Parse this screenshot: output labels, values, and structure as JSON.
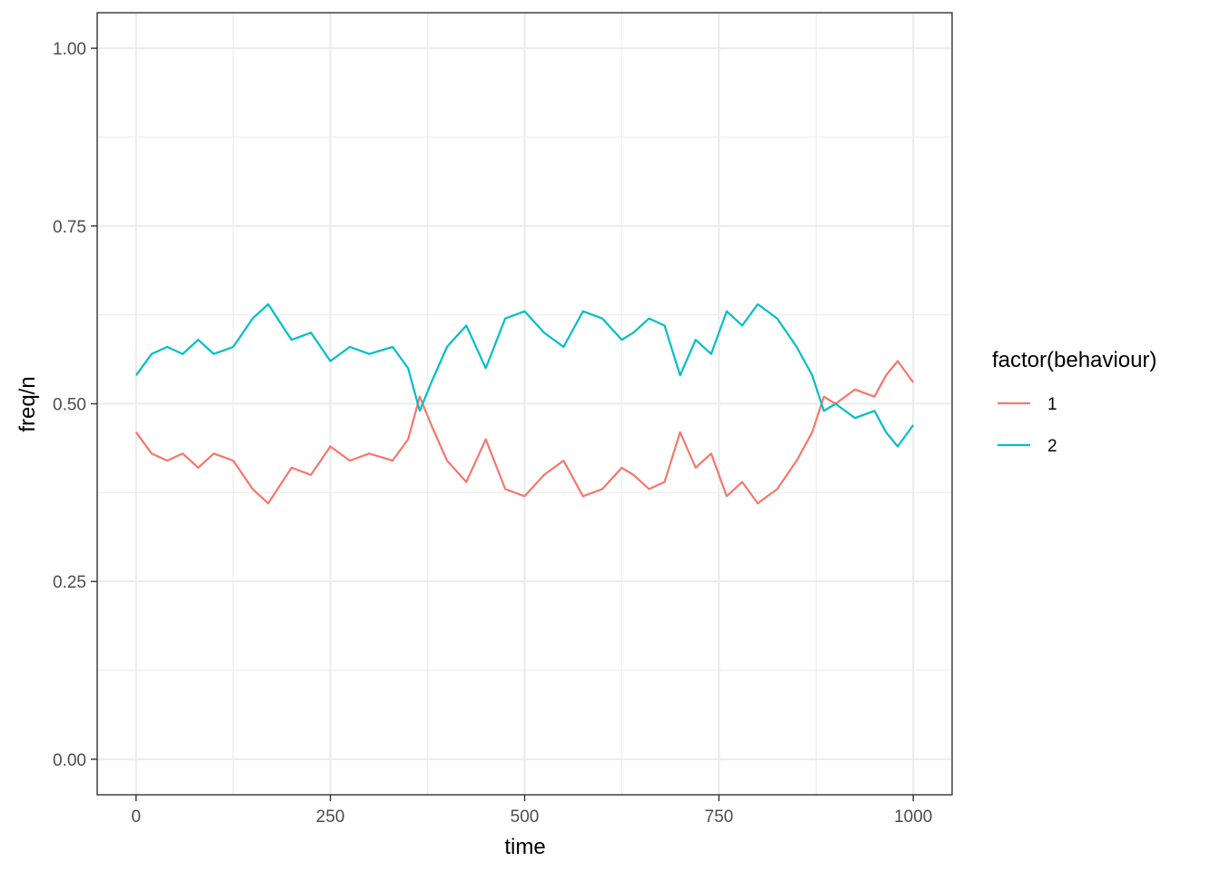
{
  "chart_data": {
    "type": "line",
    "title": "",
    "xlabel": "time",
    "ylabel": "freq/n",
    "xlim": [
      -50,
      1050
    ],
    "ylim": [
      -0.05,
      1.05
    ],
    "x_ticks": [
      0,
      250,
      500,
      750,
      1000
    ],
    "x_tick_labels": [
      "0",
      "250",
      "500",
      "750",
      "1000"
    ],
    "y_ticks": [
      0,
      0.25,
      0.5,
      0.75,
      1.0
    ],
    "y_tick_labels": [
      "0.00",
      "0.25",
      "0.50",
      "0.75",
      "1.00"
    ],
    "grid": true,
    "legend": {
      "title": "factor(behaviour)",
      "position": "right"
    },
    "x": [
      0,
      20,
      40,
      60,
      80,
      100,
      125,
      150,
      170,
      200,
      225,
      250,
      275,
      300,
      330,
      350,
      365,
      380,
      400,
      425,
      450,
      475,
      500,
      525,
      550,
      575,
      600,
      625,
      640,
      660,
      680,
      700,
      720,
      740,
      760,
      780,
      800,
      825,
      850,
      870,
      885,
      900,
      925,
      950,
      965,
      980,
      1000
    ],
    "series": [
      {
        "name": "1",
        "color": "#F8766D",
        "values": [
          0.46,
          0.43,
          0.42,
          0.43,
          0.41,
          0.43,
          0.42,
          0.38,
          0.36,
          0.41,
          0.4,
          0.44,
          0.42,
          0.43,
          0.42,
          0.45,
          0.51,
          0.47,
          0.42,
          0.39,
          0.45,
          0.38,
          0.37,
          0.4,
          0.42,
          0.37,
          0.38,
          0.41,
          0.4,
          0.38,
          0.39,
          0.46,
          0.41,
          0.43,
          0.37,
          0.39,
          0.36,
          0.38,
          0.42,
          0.46,
          0.51,
          0.5,
          0.52,
          0.51,
          0.54,
          0.56,
          0.53
        ]
      },
      {
        "name": "2",
        "color": "#00BFC4",
        "values": [
          0.54,
          0.57,
          0.58,
          0.57,
          0.59,
          0.57,
          0.58,
          0.62,
          0.64,
          0.59,
          0.6,
          0.56,
          0.58,
          0.57,
          0.58,
          0.55,
          0.49,
          0.53,
          0.58,
          0.61,
          0.55,
          0.62,
          0.63,
          0.6,
          0.58,
          0.63,
          0.62,
          0.59,
          0.6,
          0.62,
          0.61,
          0.54,
          0.59,
          0.57,
          0.63,
          0.61,
          0.64,
          0.62,
          0.58,
          0.54,
          0.49,
          0.5,
          0.48,
          0.49,
          0.46,
          0.44,
          0.47
        ]
      }
    ]
  }
}
